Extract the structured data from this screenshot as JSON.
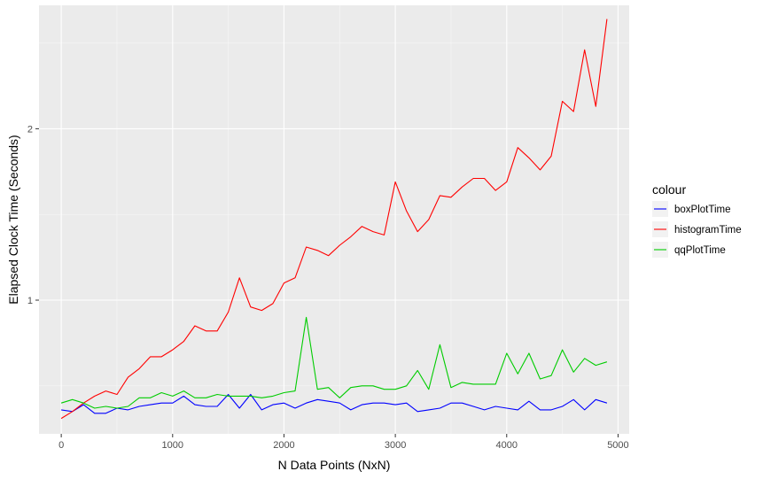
{
  "chart_data": {
    "type": "line",
    "title": "",
    "xlabel": "N Data Points (NxN)",
    "ylabel": "Elapsed Clock Time (Seconds)",
    "xlim": [
      -200,
      5100
    ],
    "ylim": [
      0.22,
      2.72
    ],
    "x_ticks": [
      0,
      1000,
      2000,
      3000,
      4000,
      5000
    ],
    "y_ticks": [
      1,
      2
    ],
    "grid": true,
    "legend_title": "colour",
    "legend_position": "right",
    "x": [
      0,
      100,
      200,
      300,
      400,
      500,
      600,
      700,
      800,
      900,
      1000,
      1100,
      1200,
      1300,
      1400,
      1500,
      1600,
      1700,
      1800,
      1900,
      2000,
      2100,
      2200,
      2300,
      2400,
      2500,
      2600,
      2700,
      2800,
      2900,
      3000,
      3100,
      3200,
      3300,
      3400,
      3500,
      3600,
      3700,
      3800,
      3900,
      4000,
      4100,
      4200,
      4300,
      4400,
      4500,
      4600,
      4700,
      4800,
      4900
    ],
    "series": [
      {
        "name": "boxPlotTime",
        "color": "#0000ff",
        "values": [
          0.36,
          0.35,
          0.39,
          0.34,
          0.34,
          0.37,
          0.36,
          0.38,
          0.39,
          0.4,
          0.4,
          0.44,
          0.39,
          0.38,
          0.38,
          0.45,
          0.37,
          0.45,
          0.36,
          0.39,
          0.4,
          0.37,
          0.4,
          0.42,
          0.41,
          0.4,
          0.36,
          0.39,
          0.4,
          0.4,
          0.39,
          0.4,
          0.35,
          0.36,
          0.37,
          0.4,
          0.4,
          0.38,
          0.36,
          0.38,
          0.37,
          0.36,
          0.41,
          0.36,
          0.36,
          0.38,
          0.42,
          0.36,
          0.42,
          0.4
        ]
      },
      {
        "name": "histogramTime",
        "color": "#ff0000",
        "values": [
          0.31,
          0.35,
          0.4,
          0.44,
          0.47,
          0.45,
          0.55,
          0.6,
          0.67,
          0.67,
          0.71,
          0.76,
          0.85,
          0.82,
          0.82,
          0.93,
          1.13,
          0.96,
          0.94,
          0.98,
          1.1,
          1.13,
          1.31,
          1.29,
          1.26,
          1.32,
          1.37,
          1.43,
          1.4,
          1.38,
          1.69,
          1.52,
          1.4,
          1.47,
          1.61,
          1.6,
          1.66,
          1.71,
          1.71,
          1.64,
          1.69,
          1.89,
          1.83,
          1.76,
          1.84,
          2.16,
          2.1,
          2.46,
          2.13,
          2.64
        ]
      },
      {
        "name": "qqPlotTime",
        "color": "#00cc00",
        "values": [
          0.4,
          0.42,
          0.4,
          0.37,
          0.38,
          0.37,
          0.38,
          0.43,
          0.43,
          0.46,
          0.44,
          0.47,
          0.43,
          0.43,
          0.45,
          0.44,
          0.44,
          0.44,
          0.43,
          0.44,
          0.46,
          0.47,
          0.9,
          0.48,
          0.49,
          0.43,
          0.49,
          0.5,
          0.5,
          0.48,
          0.48,
          0.5,
          0.59,
          0.48,
          0.74,
          0.49,
          0.52,
          0.51,
          0.51,
          0.51,
          0.69,
          0.57,
          0.69,
          0.54,
          0.56,
          0.71,
          0.58,
          0.66,
          0.62,
          0.64
        ]
      }
    ]
  }
}
